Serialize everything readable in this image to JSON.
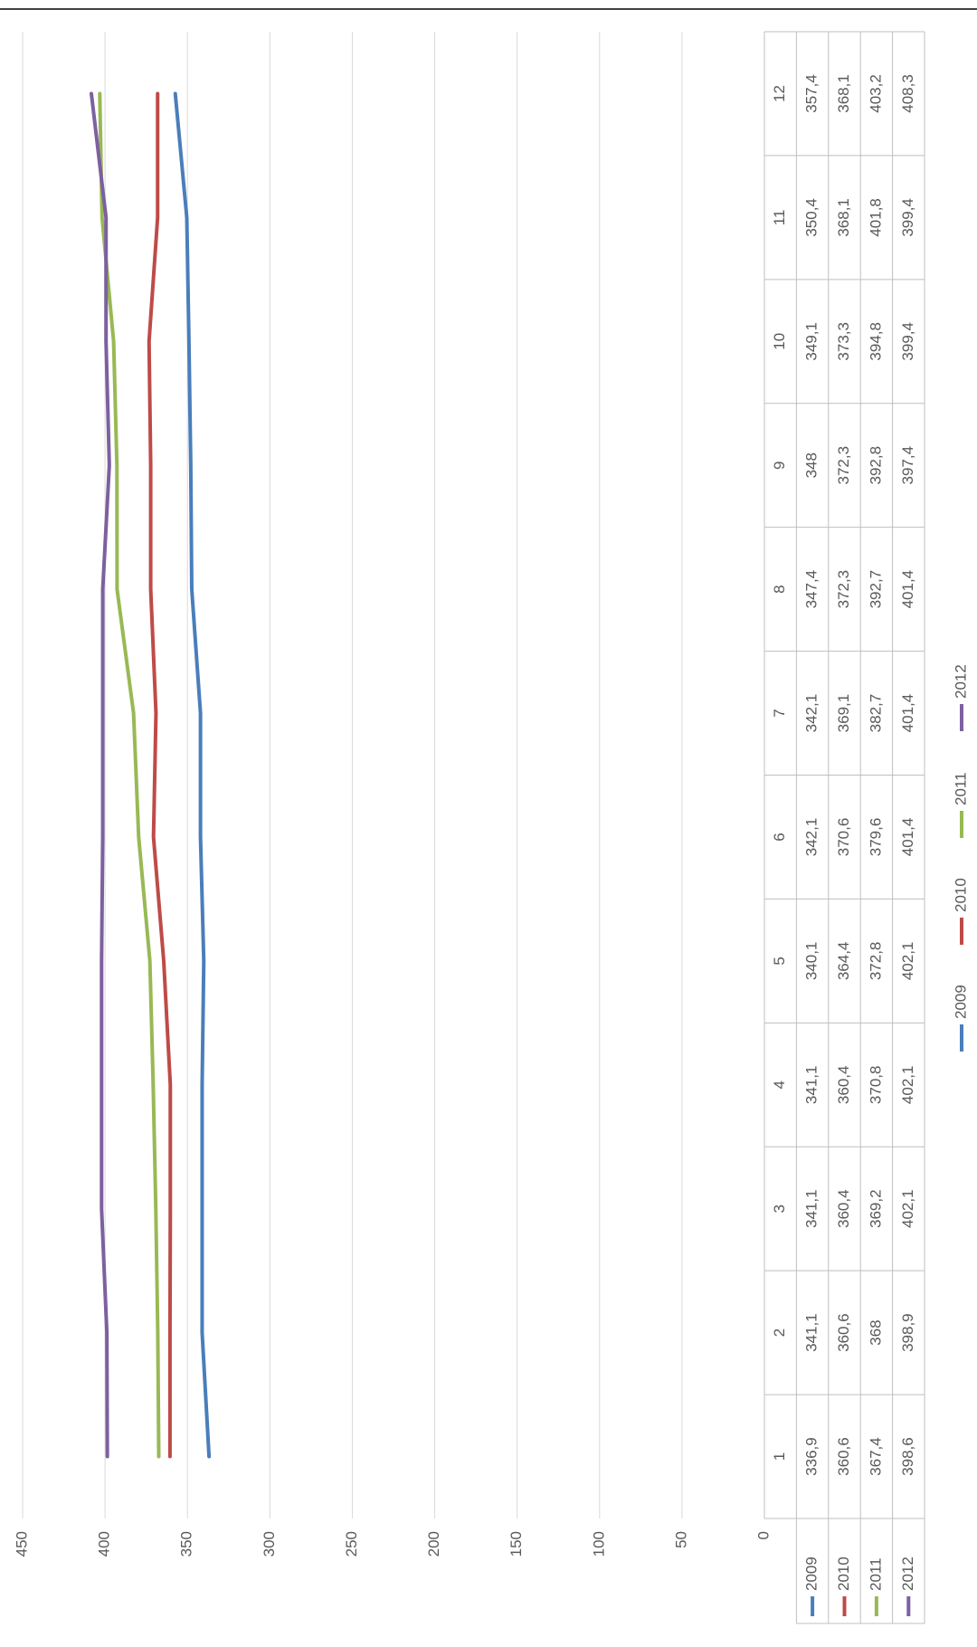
{
  "chart_data": {
    "type": "line",
    "categories": [
      "1",
      "2",
      "3",
      "4",
      "5",
      "6",
      "7",
      "8",
      "9",
      "10",
      "11",
      "12"
    ],
    "series": [
      {
        "name": "2009",
        "color": "#4a7ebb",
        "values": [
          336.9,
          341.1,
          341.1,
          341.1,
          340.1,
          342.1,
          342.1,
          347.4,
          348,
          349.1,
          350.4,
          357.4
        ],
        "value_labels": [
          "336,9",
          "341,1",
          "341,1",
          "341,1",
          "340,1",
          "342,1",
          "342,1",
          "347,4",
          "348",
          "349,1",
          "350,4",
          "357,4"
        ]
      },
      {
        "name": "2010",
        "color": "#be4b48",
        "values": [
          360.6,
          360.6,
          360.4,
          360.4,
          364.4,
          370.6,
          369.1,
          372.3,
          372.3,
          373.3,
          368.1,
          368.1
        ],
        "value_labels": [
          "360,6",
          "360,6",
          "360,4",
          "360,4",
          "364,4",
          "370,6",
          "369,1",
          "372,3",
          "372,3",
          "373,3",
          "368,1",
          "368,1"
        ]
      },
      {
        "name": "2011",
        "color": "#98b954",
        "values": [
          367.4,
          368,
          369.2,
          370.8,
          372.8,
          379.6,
          382.7,
          392.7,
          392.8,
          394.8,
          401.8,
          403.2
        ],
        "value_labels": [
          "367,4",
          "368",
          "369,2",
          "370,8",
          "372,8",
          "379,6",
          "382,7",
          "392,7",
          "392,8",
          "394,8",
          "401,8",
          "403,2"
        ]
      },
      {
        "name": "2012",
        "color": "#7d60a0",
        "values": [
          398.6,
          398.9,
          402.1,
          402.1,
          402.1,
          401.4,
          401.4,
          401.4,
          397.4,
          399.4,
          399.4,
          408.3
        ],
        "value_labels": [
          "398,6",
          "398,9",
          "402,1",
          "402,1",
          "402,1",
          "401,4",
          "401,4",
          "401,4",
          "397,4",
          "399,4",
          "399,4",
          "408,3"
        ]
      }
    ],
    "ylim": [
      0,
      450
    ],
    "yticks": [
      0,
      50,
      100,
      150,
      200,
      250,
      300,
      350,
      400,
      450
    ],
    "grid": true
  }
}
